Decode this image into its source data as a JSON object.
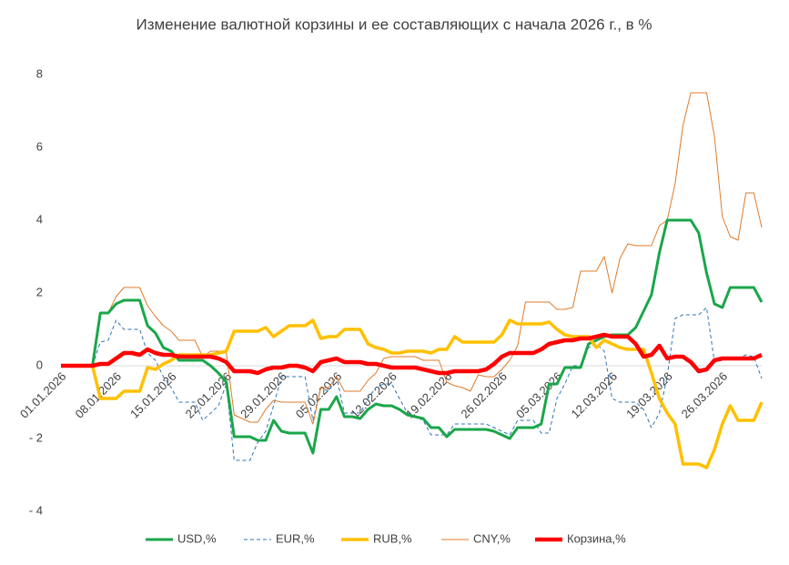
{
  "chart_data": {
    "type": "line",
    "title": "Изменение валютной корзины и ее составляющих с начала 2026 г., в %",
    "categories": [
      "01.01.2026",
      null,
      null,
      null,
      null,
      null,
      null,
      "08.01.2026",
      null,
      null,
      null,
      null,
      null,
      null,
      "15.01.2026",
      null,
      null,
      null,
      null,
      null,
      null,
      "22.01.2026",
      null,
      null,
      null,
      null,
      null,
      null,
      "29.01.2026",
      null,
      null,
      null,
      null,
      null,
      null,
      "05.02.2026",
      null,
      null,
      null,
      null,
      null,
      null,
      "12.02.2026",
      null,
      null,
      null,
      null,
      null,
      null,
      "19.02.2026",
      null,
      null,
      null,
      null,
      null,
      null,
      "26.02.2026",
      null,
      null,
      null,
      null,
      null,
      null,
      "05.03.2026",
      null,
      null,
      null,
      null,
      null,
      null,
      "12.03.2026",
      null,
      null,
      null,
      null,
      null,
      null,
      "19.03.2026",
      null,
      null,
      null,
      null,
      null,
      null,
      "26.03.2026",
      null,
      null,
      null,
      null,
      null
    ],
    "ylim": [
      -4,
      8
    ],
    "yticks": [
      {
        "value": -4,
        "label": "- 4"
      },
      {
        "value": -2,
        "label": "- 2"
      },
      0,
      2,
      4,
      6,
      8
    ],
    "grid": false,
    "legend": "bottom",
    "series": [
      {
        "name": "USD,%",
        "color": "#1aa64a",
        "width": 3,
        "dashed": false,
        "values": [
          0,
          0,
          0,
          0,
          0,
          1.45,
          1.45,
          1.7,
          1.8,
          1.8,
          1.8,
          1.1,
          0.9,
          0.5,
          0.4,
          0.15,
          0.15,
          0.15,
          0.15,
          0,
          -0.2,
          -0.45,
          -1.95,
          -1.95,
          -1.95,
          -2.05,
          -2.05,
          -1.5,
          -1.8,
          -1.85,
          -1.85,
          -1.85,
          -2.4,
          -1.2,
          -1.2,
          -0.85,
          -1.4,
          -1.4,
          -1.45,
          -1.2,
          -1.05,
          -1.1,
          -1.1,
          -1.2,
          -1.35,
          -1.4,
          -1.45,
          -1.7,
          -1.7,
          -1.95,
          -1.75,
          -1.75,
          -1.75,
          -1.75,
          -1.75,
          -1.8,
          -1.9,
          -2.0,
          -1.7,
          -1.7,
          -1.7,
          -1.6,
          -0.5,
          -0.5,
          -0.05,
          -0.05,
          -0.05,
          0.6,
          0.7,
          0.8,
          0.85,
          0.85,
          0.85,
          1.05,
          1.5,
          1.95,
          3.1,
          4.0,
          4.0,
          4.0,
          4.0,
          3.65,
          2.55,
          1.7,
          1.6,
          2.15,
          2.15,
          2.15,
          2.15,
          1.75
        ]
      },
      {
        "name": "EUR,%",
        "color": "#2e75b6",
        "width": 1,
        "dashed": true,
        "values": [
          0,
          0,
          0,
          0,
          0,
          0.65,
          0.7,
          1.25,
          1.0,
          1.0,
          1.0,
          0.35,
          0.15,
          -0.3,
          -0.6,
          -1.0,
          -1.0,
          -1.0,
          -1.5,
          -1.3,
          -1.1,
          -0.5,
          -2.6,
          -2.6,
          -2.6,
          -2.1,
          -1.8,
          -1.1,
          -0.3,
          -0.3,
          -0.3,
          -0.3,
          -1.5,
          -0.6,
          -0.7,
          -0.3,
          -1.3,
          -1.3,
          -1.3,
          -0.9,
          -0.6,
          -0.5,
          -0.5,
          -0.9,
          -1.3,
          -1.4,
          -1.5,
          -1.9,
          -1.9,
          -1.9,
          -1.6,
          -1.6,
          -1.6,
          -1.6,
          -1.6,
          -1.7,
          -1.8,
          -1.9,
          -1.5,
          -1.5,
          -1.5,
          -1.85,
          -1.85,
          -0.9,
          -0.5,
          0,
          0,
          0.5,
          0.6,
          0.4,
          -0.9,
          -1.0,
          -1.0,
          -1.0,
          -1.2,
          -1.7,
          -1.3,
          -0.3,
          1.3,
          1.4,
          1.4,
          1.4,
          1.6,
          0.1,
          0.15,
          0.2,
          0.2,
          0.3,
          0.25,
          -0.35
        ]
      },
      {
        "name": "RUB,%",
        "color": "#ffc000",
        "width": 3.5,
        "dashed": false,
        "values": [
          0,
          0,
          0,
          0,
          0,
          -0.9,
          -0.9,
          -0.9,
          -0.7,
          -0.7,
          -0.7,
          -0.05,
          -0.1,
          0.05,
          0.15,
          0.3,
          0.3,
          0.3,
          0.3,
          0.3,
          0.35,
          0.4,
          0.95,
          0.95,
          0.95,
          0.95,
          1.05,
          0.8,
          0.95,
          1.1,
          1.1,
          1.1,
          1.25,
          0.75,
          0.8,
          0.8,
          1.0,
          1.0,
          1.0,
          0.6,
          0.5,
          0.45,
          0.35,
          0.35,
          0.4,
          0.4,
          0.4,
          0.35,
          0.45,
          0.45,
          0.8,
          0.65,
          0.65,
          0.65,
          0.65,
          0.65,
          0.85,
          1.25,
          1.15,
          1.15,
          1.15,
          1.15,
          1.2,
          1.0,
          0.85,
          0.8,
          0.8,
          0.8,
          0.5,
          0.7,
          0.6,
          0.5,
          0.45,
          0.45,
          0.45,
          -0.2,
          -0.9,
          -1.3,
          -1.6,
          -2.7,
          -2.7,
          -2.7,
          -2.8,
          -2.3,
          -1.6,
          -1.1,
          -1.5,
          -1.5,
          -1.5,
          -1.0
        ]
      },
      {
        "name": "CNY,%",
        "color": "#e07b2a",
        "width": 1,
        "dashed": false,
        "values": [
          0,
          0,
          0,
          0,
          0,
          1.45,
          1.45,
          1.9,
          2.15,
          2.15,
          2.15,
          1.65,
          1.35,
          1.1,
          0.95,
          0.7,
          0.7,
          0.7,
          0.25,
          0.4,
          0.4,
          0.35,
          -1.35,
          -1.45,
          -1.55,
          -1.55,
          -1.2,
          -0.95,
          -1.0,
          -1.0,
          -1.0,
          -1.0,
          -1.6,
          -0.6,
          -0.6,
          -0.3,
          -0.7,
          -0.7,
          -0.7,
          -0.4,
          -0.2,
          0.2,
          0.25,
          0.25,
          0.25,
          0.25,
          0.15,
          0.15,
          0.15,
          -0.45,
          -0.55,
          -0.6,
          -0.7,
          -0.25,
          -0.3,
          -0.3,
          -0.1,
          0.15,
          0.55,
          1.75,
          1.75,
          1.75,
          1.75,
          1.55,
          1.55,
          1.6,
          2.6,
          2.6,
          2.6,
          3.0,
          2.0,
          2.95,
          3.35,
          3.3,
          3.3,
          3.3,
          3.85,
          4.0,
          5.0,
          6.6,
          7.5,
          7.5,
          7.5,
          6.3,
          4.1,
          3.55,
          3.45,
          4.75,
          4.75,
          3.8
        ]
      },
      {
        "name": "Корзина,%",
        "color": "#ff0000",
        "width": 4.5,
        "dashed": false,
        "values": [
          0,
          0,
          0,
          0,
          0,
          0.05,
          0.05,
          0.2,
          0.35,
          0.35,
          0.3,
          0.45,
          0.35,
          0.3,
          0.3,
          0.25,
          0.25,
          0.25,
          0.25,
          0.25,
          0.2,
          0.1,
          -0.15,
          -0.15,
          -0.15,
          -0.2,
          -0.1,
          -0.05,
          -0.05,
          0,
          0,
          -0.05,
          -0.15,
          0.1,
          0.15,
          0.2,
          0.1,
          0.1,
          0.1,
          0.05,
          0.05,
          0,
          -0.05,
          -0.05,
          -0.05,
          -0.05,
          -0.1,
          -0.15,
          -0.2,
          -0.2,
          -0.15,
          -0.15,
          -0.15,
          -0.15,
          -0.1,
          0.05,
          0.25,
          0.35,
          0.35,
          0.35,
          0.35,
          0.45,
          0.6,
          0.65,
          0.7,
          0.7,
          0.75,
          0.75,
          0.8,
          0.85,
          0.8,
          0.8,
          0.8,
          0.6,
          0.25,
          0.3,
          0.55,
          0.2,
          0.25,
          0.25,
          0.1,
          -0.15,
          -0.1,
          0.15,
          0.2,
          0.2,
          0.2,
          0.2,
          0.2,
          0.3
        ]
      }
    ]
  }
}
